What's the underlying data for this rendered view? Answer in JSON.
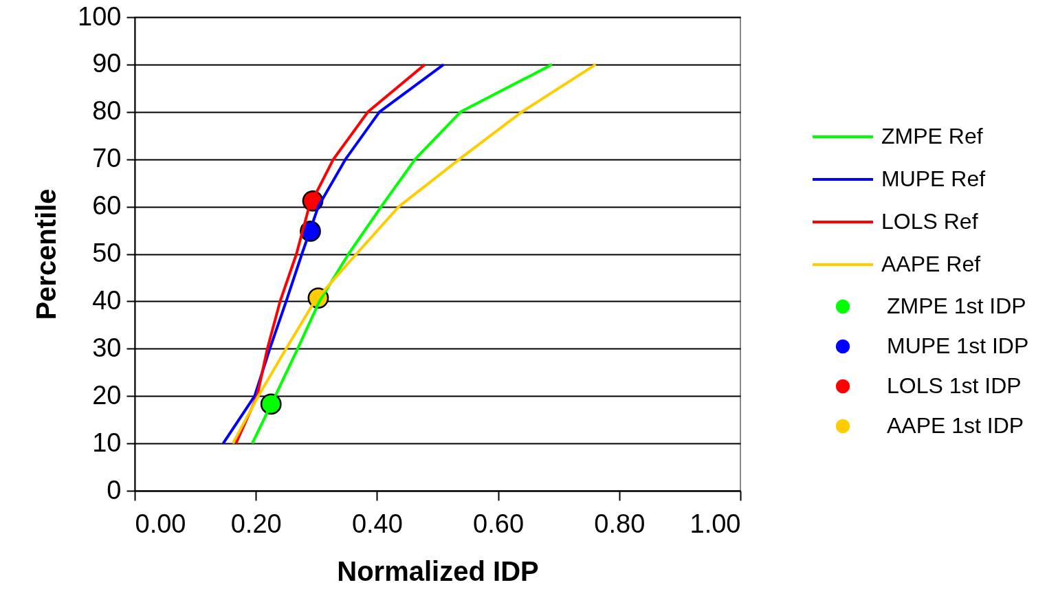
{
  "chart_data": {
    "type": "line",
    "xlabel": "Normalized IDP",
    "ylabel": "Percentile",
    "xlim": [
      0,
      1
    ],
    "xticks": [
      {
        "value": 0,
        "label": "0.00"
      },
      {
        "value": 0.2,
        "label": "0.20"
      },
      {
        "value": 0.4,
        "label": "0.40"
      },
      {
        "value": 0.6,
        "label": "0.60"
      },
      {
        "value": 0.8,
        "label": "0.80"
      },
      {
        "value": 1,
        "label": "1.00"
      }
    ],
    "ylim": [
      0,
      100
    ],
    "yticks": [
      0,
      10,
      20,
      30,
      40,
      50,
      60,
      70,
      80,
      90,
      100
    ],
    "grid": "y",
    "legend": "right",
    "series": [
      {
        "name": "ZMPE Ref",
        "type": "line",
        "color": "#00ff00",
        "x": [
          0.194,
          0.232,
          0.269,
          0.305,
          0.353,
          0.407,
          0.463,
          0.538,
          0.689
        ],
        "values": [
          10,
          20,
          30,
          40,
          50,
          60,
          70,
          80,
          90
        ]
      },
      {
        "name": "MUPE Ref",
        "type": "line",
        "color": "#0000ff",
        "x": [
          0.146,
          0.198,
          0.223,
          0.25,
          0.276,
          0.303,
          0.348,
          0.404,
          0.51
        ],
        "values": [
          10,
          20,
          30,
          40,
          50,
          60,
          70,
          80,
          90
        ]
      },
      {
        "name": "LOLS Ref",
        "type": "line",
        "color": "#ff0000",
        "x": [
          0.167,
          0.202,
          0.219,
          0.24,
          0.267,
          0.288,
          0.328,
          0.385,
          0.479
        ],
        "values": [
          10,
          20,
          30,
          40,
          50,
          60,
          70,
          80,
          90
        ]
      },
      {
        "name": "AAPE Ref",
        "type": "line",
        "color": "#ffcc00",
        "x": [
          0.162,
          0.204,
          0.25,
          0.297,
          0.366,
          0.436,
          0.536,
          0.639,
          0.761
        ],
        "values": [
          10,
          20,
          30,
          40,
          50,
          60,
          70,
          80,
          90
        ]
      },
      {
        "name": "ZMPE 1st IDP",
        "type": "scatter",
        "marker": "circle",
        "color": "#00ff00",
        "x": [
          0.225
        ],
        "values": [
          18.3
        ]
      },
      {
        "name": "MUPE 1st IDP",
        "type": "scatter",
        "marker": "circle",
        "color": "#0000ff",
        "x": [
          0.29
        ],
        "values": [
          54.8
        ]
      },
      {
        "name": "LOLS 1st IDP",
        "type": "scatter",
        "marker": "circle",
        "color": "#ff0000",
        "x": [
          0.294
        ],
        "values": [
          61.2
        ]
      },
      {
        "name": "AAPE 1st IDP",
        "type": "scatter",
        "marker": "circle",
        "color": "#ffcc00",
        "x": [
          0.303
        ],
        "values": [
          40.7
        ]
      }
    ]
  }
}
